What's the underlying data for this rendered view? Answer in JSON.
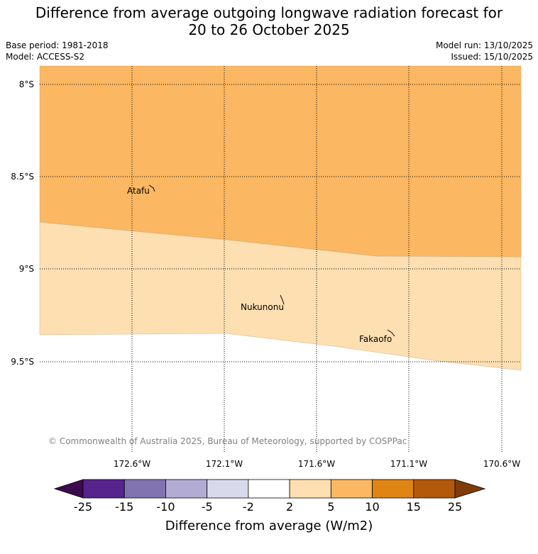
{
  "title_line1": "Difference from average outgoing longwave radiation forecast for",
  "title_line2": "20 to 26 October 2025",
  "base_period": "Base period: 1981-2018",
  "model": "Model: ACCESS-S2",
  "model_run": "Model run: 13/10/2025",
  "issued": "Issued: 15/10/2025",
  "map": {
    "lat_labels": [
      "8°S",
      "8.5°S",
      "9°S",
      "9.5°S"
    ],
    "lon_labels": [
      "172.6°W",
      "172.1°W",
      "171.6°W",
      "171.1°W",
      "170.6°W"
    ],
    "places": [
      {
        "name": "Atafu",
        "icon": "atoll-outline"
      },
      {
        "name": "Nukunonu",
        "icon": "atoll-outline"
      },
      {
        "name": "Fakaofo",
        "icon": "atoll-outline"
      }
    ],
    "copyright": "© Commonwealth of Australia 2025, Bureau of Meteorology, supported by COSPPac",
    "region_colors": {
      "5 to 10": "#fbb762",
      "2 to 5": "#fddfb2",
      "-2 to 2": "#ffffff"
    }
  },
  "colorbar": {
    "title": "Difference from average (W/m2)",
    "ticks": [
      "-25",
      "-15",
      "-10",
      "-5",
      "-2",
      "2",
      "5",
      "10",
      "15",
      "25"
    ],
    "colors": [
      "#3b0a4f",
      "#57238d",
      "#8073b0",
      "#b2abd4",
      "#d9d9ec",
      "#ffffff",
      "#fddfb2",
      "#fbb762",
      "#e08413",
      "#b35a0a",
      "#7f3b08"
    ]
  }
}
